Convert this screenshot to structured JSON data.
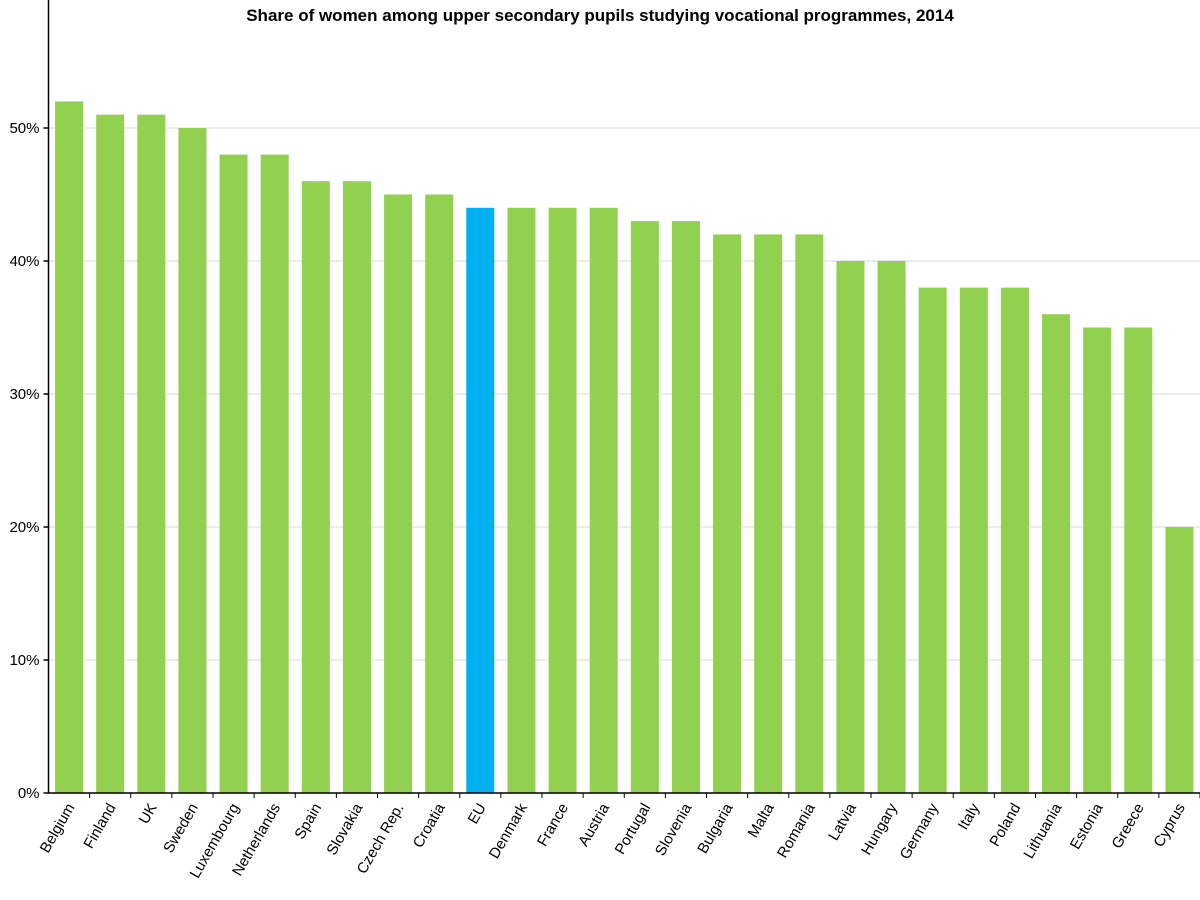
{
  "chart_data": {
    "type": "bar",
    "title": "Share of women among upper secondary pupils studying vocational programmes, 2014",
    "xlabel": "",
    "ylabel": "",
    "categories": [
      "Belgium",
      "Finland",
      "UK",
      "Sweden",
      "Luxembourg",
      "Netherlands",
      "Spain",
      "Slovakia",
      "Czech Rep.",
      "Croatia",
      "EU",
      "Denmark",
      "France",
      "Austria",
      "Portugal",
      "Slovenia",
      "Bulgaria",
      "Malta",
      "Romania",
      "Latvia",
      "Hungary",
      "Germany",
      "Italy",
      "Poland",
      "Lithuania",
      "Estonia",
      "Greece",
      "Cyprus"
    ],
    "values": [
      52,
      51,
      51,
      50,
      48,
      48,
      46,
      46,
      45,
      45,
      44,
      44,
      44,
      44,
      43,
      43,
      42,
      42,
      42,
      40,
      40,
      38,
      38,
      38,
      36,
      35,
      35,
      20
    ],
    "ylim": [
      0,
      60
    ],
    "yticks": [
      0,
      10,
      20,
      30,
      40,
      50
    ],
    "ytick_labels": [
      "0%",
      "10%",
      "20%",
      "30%",
      "40%",
      "50%"
    ],
    "grid": "horizontal",
    "colors": {
      "default": "#92d050",
      "highlight": "#00b0f0",
      "highlight_category": "EU",
      "grid": "#d9d9d9"
    }
  }
}
